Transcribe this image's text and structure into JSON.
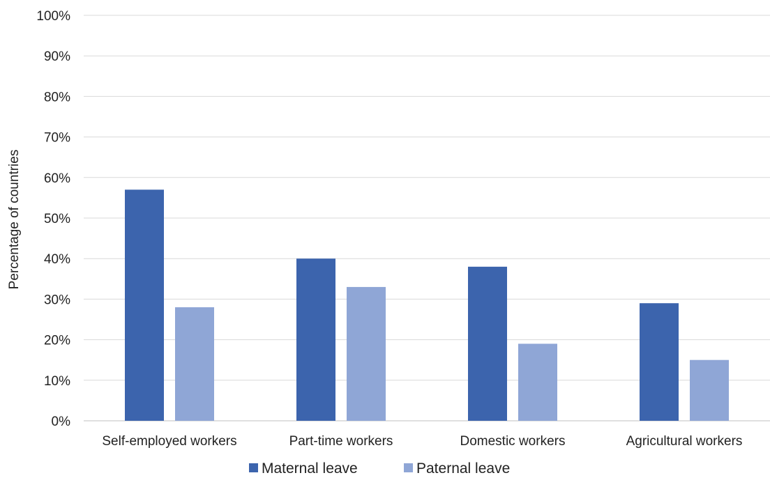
{
  "chart_data": {
    "type": "bar",
    "categories": [
      "Self-employed workers",
      "Part-time workers",
      "Domestic workers",
      "Agricultural workers"
    ],
    "series": [
      {
        "name": "Maternal leave",
        "values": [
          57,
          40,
          38,
          29
        ],
        "color": "#3c64ad"
      },
      {
        "name": "Paternal leave",
        "values": [
          28,
          33,
          19,
          15
        ],
        "color": "#8fa6d6"
      }
    ],
    "title": "",
    "xlabel": "",
    "ylabel": "Percentage of countries",
    "ylim": [
      0,
      100
    ],
    "yticks": [
      "0%",
      "10%",
      "20%",
      "30%",
      "40%",
      "50%",
      "60%",
      "70%",
      "80%",
      "90%",
      "100%"
    ],
    "grid": true,
    "legend_position": "bottom"
  }
}
